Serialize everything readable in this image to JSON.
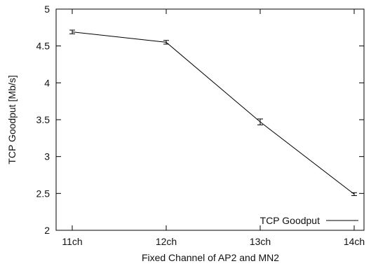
{
  "chart_data": {
    "type": "line",
    "title": "",
    "xlabel": "Fixed Channel of AP2 and MN2",
    "ylabel": "TCP Goodput [Mb/s]",
    "categories": [
      "11ch",
      "12ch",
      "13ch",
      "14ch"
    ],
    "ylim": [
      2,
      5
    ],
    "yticks": [
      "2",
      "2.5",
      "3",
      "3.5",
      "4",
      "4.5",
      "5"
    ],
    "grid": false,
    "legend_position": "bottom-right",
    "series": [
      {
        "name": "TCP Goodput",
        "values": [
          4.69,
          4.55,
          3.47,
          2.49
        ],
        "errors": [
          0.025,
          0.025,
          0.04,
          0.02
        ],
        "color": "#000000"
      }
    ]
  }
}
